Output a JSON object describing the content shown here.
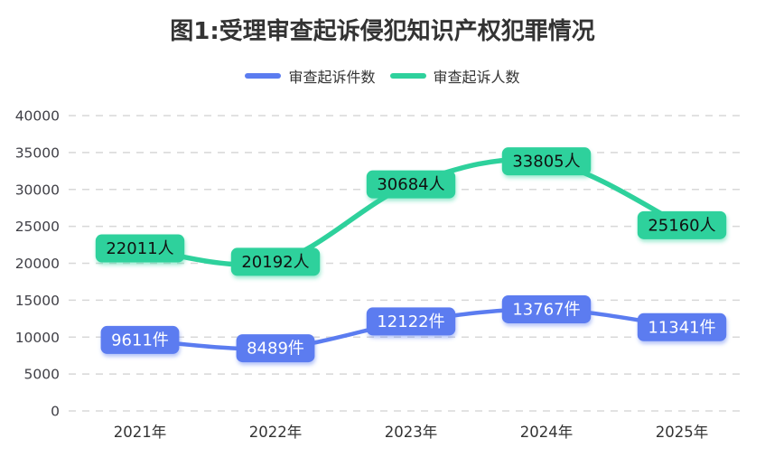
{
  "page": {
    "background": "#ffffff"
  },
  "chart_data": {
    "type": "line",
    "title": "图1:受理审查起诉侵犯知识产权犯罪情况",
    "categories": [
      "2021年",
      "2022年",
      "2023年",
      "2024年",
      "2025年"
    ],
    "series": [
      {
        "name": "审查起诉件数",
        "unit": "件",
        "color": "#5b7cf0",
        "label_text_color": "#ffffff",
        "values": [
          9611,
          8489,
          12122,
          13767,
          11341
        ],
        "labels": [
          "9611件",
          "8489件",
          "12122件",
          "13767件",
          "11341件"
        ]
      },
      {
        "name": "审查起诉人数",
        "unit": "人",
        "color": "#2ed19c",
        "label_text_color": "#111111",
        "values": [
          22011,
          20192,
          30684,
          33805,
          25160
        ],
        "labels": [
          "22011人",
          "20192人",
          "30684人",
          "33805人",
          "25160人"
        ]
      }
    ],
    "xlabel": "",
    "ylabel": "",
    "ylim": [
      0,
      40000
    ],
    "yticks": [
      0,
      5000,
      10000,
      15000,
      20000,
      25000,
      30000,
      35000,
      40000
    ],
    "ytick_labels": [
      "0",
      "5000",
      "10000",
      "15000",
      "20000",
      "25000",
      "30000",
      "35000",
      "40000"
    ],
    "grid": "dashed-horizontal",
    "legend_position": "top",
    "line_style": "smooth",
    "colors": {
      "grid_line": "#d8d8d8",
      "axis_text": "#3f3f46",
      "title_text": "#333333"
    }
  }
}
